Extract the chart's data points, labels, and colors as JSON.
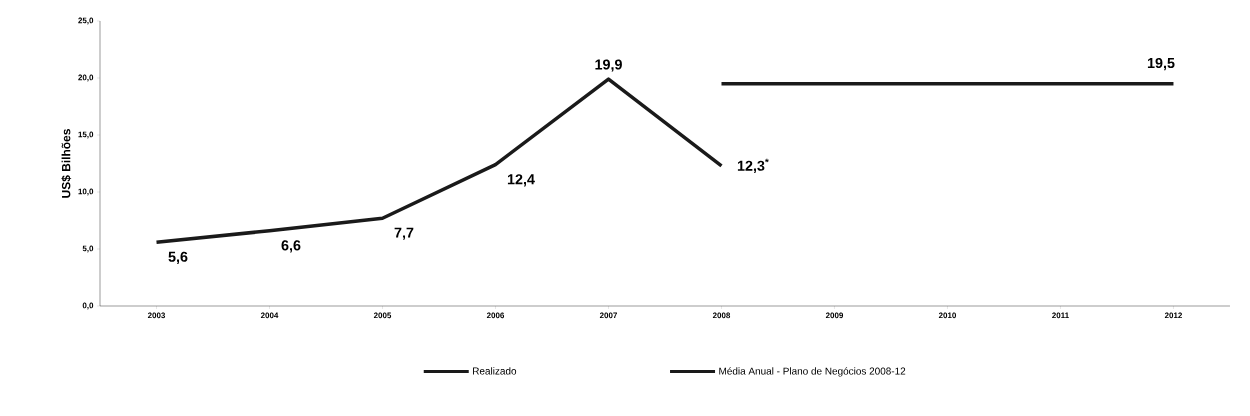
{
  "chart_data": {
    "type": "line",
    "ylabel": "US$ Bilhões",
    "categories": [
      "2003",
      "2004",
      "2005",
      "2006",
      "2007",
      "2008",
      "2009",
      "2010",
      "2011",
      "2012"
    ],
    "series": [
      {
        "name": "Realizado",
        "color": "#1a1a1a",
        "values": [
          5.6,
          6.6,
          7.7,
          12.4,
          19.9,
          12.3,
          null,
          null,
          null,
          null
        ],
        "value_labels": [
          "5,6",
          "6,6",
          "7,7",
          "12,4",
          "19,9",
          "12,3$^{*}$",
          null,
          null,
          null,
          null
        ]
      },
      {
        "name": "Média Anual - Plano de Negócios 2008-12",
        "color": "#1a1a1a",
        "values": [
          null,
          null,
          null,
          null,
          null,
          19.5,
          19.5,
          19.5,
          19.5,
          19.5
        ],
        "value_labels": [
          null,
          null,
          null,
          null,
          null,
          null,
          null,
          null,
          null,
          "19,5"
        ]
      }
    ],
    "ylim": [
      0,
      25
    ],
    "yticks": [
      {
        "value": 0,
        "label": "0,0"
      },
      {
        "value": 5,
        "label": "5,0"
      },
      {
        "value": 10,
        "label": "10,0"
      },
      {
        "value": 15,
        "label": "15,0"
      },
      {
        "value": 20,
        "label": "20,0"
      },
      {
        "value": 25,
        "label": "25,0"
      }
    ],
    "grid": false,
    "legend": "bottom",
    "marker": "none",
    "line_style": "solid"
  }
}
